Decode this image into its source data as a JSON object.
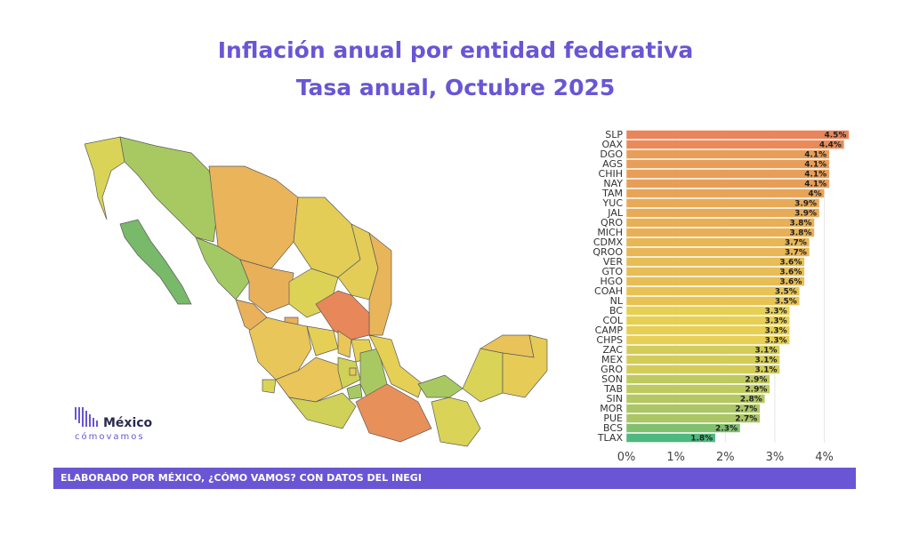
{
  "title": "Inflación anual por entidad federativa",
  "subtitle": "Tasa anual, Octubre 2025",
  "logo": {
    "word": "México",
    "sub": "cómovamos"
  },
  "footer": "ELABORADO POR MÉXICO, ¿CÓMO VAMOS? CON DATOS DEL INEGI",
  "colors": {
    "accent": "#6a55d4",
    "high": "#e8855a",
    "mid": "#e6cf53",
    "low": "#4fb87f"
  },
  "chart_data": {
    "type": "bar",
    "orientation": "horizontal",
    "categories": [
      "SLP",
      "OAX",
      "DGO",
      "AGS",
      "CHIH",
      "NAY",
      "TAM",
      "YUC",
      "JAL",
      "QRO",
      "MICH",
      "CDMX",
      "QROO",
      "VER",
      "GTO",
      "HGO",
      "COAH",
      "NL",
      "BC",
      "COL",
      "CAMP",
      "CHPS",
      "ZAC",
      "MEX",
      "GRO",
      "SON",
      "TAB",
      "SIN",
      "MOR",
      "PUE",
      "BCS",
      "TLAX"
    ],
    "values": [
      4.5,
      4.4,
      4.1,
      4.1,
      4.1,
      4.1,
      4.0,
      3.9,
      3.9,
      3.8,
      3.8,
      3.7,
      3.7,
      3.6,
      3.6,
      3.6,
      3.5,
      3.5,
      3.3,
      3.3,
      3.3,
      3.3,
      3.1,
      3.1,
      3.1,
      2.9,
      2.9,
      2.8,
      2.7,
      2.7,
      2.3,
      1.8
    ],
    "labels": [
      "4.5%",
      "4.4%",
      "4.1%",
      "4.1%",
      "4.1%",
      "4.1%",
      "4%",
      "3.9%",
      "3.9%",
      "3.8%",
      "3.8%",
      "3.7%",
      "3.7%",
      "3.6%",
      "3.6%",
      "3.6%",
      "3.5%",
      "3.5%",
      "3.3%",
      "3.3%",
      "3.3%",
      "3.3%",
      "3.1%",
      "3.1%",
      "3.1%",
      "2.9%",
      "2.9%",
      "2.8%",
      "2.7%",
      "2.7%",
      "2.3%",
      "1.8%"
    ],
    "xticks": [
      "0%",
      "1%",
      "2%",
      "3%",
      "4%"
    ],
    "xlim": [
      0,
      4.6
    ]
  }
}
